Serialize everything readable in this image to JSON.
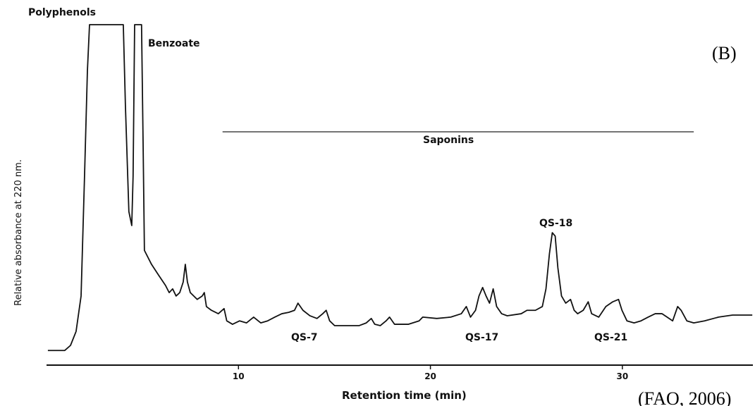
{
  "chart_data": {
    "type": "line",
    "color": "#111111",
    "x_label": "Retention time (min)",
    "y_label": "Relative absorbance at 220 nm.",
    "panel_label": "(B)",
    "source": "(FAO, 2006)",
    "xlim": [
      0,
      36.8
    ],
    "ylim": [
      0,
      100
    ],
    "xticks": [
      10,
      20,
      30
    ],
    "grid": false,
    "annotations": [
      {
        "text": "Polyphenols"
      },
      {
        "text": "Benzoate"
      },
      {
        "text": "Saponins",
        "range": [
          9.17,
          33.72
        ]
      },
      {
        "text": "QS-18"
      },
      {
        "text": "QS-7"
      },
      {
        "text": "QS-17"
      },
      {
        "text": "QS-21"
      }
    ],
    "x": [
      0.07,
      0.95,
      1.25,
      1.54,
      1.8,
      1.98,
      2.13,
      2.24,
      4.0,
      4.11,
      4.29,
      4.44,
      4.51,
      4.59,
      4.95,
      5.03,
      5.1,
      5.47,
      5.83,
      6.2,
      6.39,
      6.57,
      6.75,
      6.94,
      7.12,
      7.23,
      7.34,
      7.49,
      7.85,
      8.11,
      8.22,
      8.33,
      8.59,
      8.95,
      9.25,
      9.39,
      9.69,
      10.06,
      10.42,
      10.79,
      11.16,
      11.52,
      11.89,
      12.26,
      12.62,
      12.92,
      13.1,
      13.36,
      13.72,
      14.09,
      14.39,
      14.57,
      14.75,
      15.01,
      15.56,
      16.29,
      16.66,
      16.92,
      17.1,
      17.39,
      17.69,
      17.87,
      18.13,
      18.86,
      19.41,
      19.6,
      20.33,
      21.06,
      21.61,
      21.87,
      22.09,
      22.35,
      22.53,
      22.72,
      22.9,
      23.08,
      23.27,
      23.45,
      23.71,
      24.0,
      24.73,
      25.03,
      25.47,
      25.83,
      26.02,
      26.2,
      26.35,
      26.5,
      26.64,
      26.83,
      27.05,
      27.3,
      27.49,
      27.67,
      27.96,
      28.22,
      28.4,
      28.77,
      29.14,
      29.5,
      29.8,
      29.98,
      30.24,
      30.61,
      30.97,
      31.34,
      31.71,
      32.07,
      32.33,
      32.62,
      32.88,
      33.06,
      33.36,
      33.72,
      34.28,
      35.01,
      35.74,
      36.77
    ],
    "values": [
      4.3,
      4.3,
      5.8,
      9.9,
      20.3,
      55.5,
      86.5,
      100,
      100,
      76.2,
      45.1,
      41.0,
      55.5,
      100,
      100,
      65.8,
      33.7,
      29.6,
      26.5,
      23.4,
      21.3,
      22.4,
      20.3,
      21.3,
      24.4,
      29.6,
      24.4,
      21.3,
      19.3,
      20.3,
      21.3,
      17.2,
      16.1,
      15.1,
      16.6,
      13.0,
      12.0,
      13.0,
      12.4,
      14.1,
      12.4,
      13.0,
      14.1,
      15.1,
      15.5,
      16.1,
      18.2,
      16.1,
      14.5,
      13.7,
      15.1,
      16.1,
      13.0,
      11.6,
      11.6,
      11.6,
      12.4,
      13.7,
      12.0,
      11.6,
      13.0,
      14.1,
      12.0,
      12.0,
      13.0,
      14.1,
      13.7,
      14.1,
      15.1,
      17.2,
      14.1,
      16.1,
      20.3,
      22.8,
      20.3,
      18.2,
      22.4,
      17.2,
      15.1,
      14.5,
      15.1,
      16.1,
      16.1,
      17.2,
      22.4,
      32.7,
      38.9,
      37.9,
      28.6,
      20.3,
      18.2,
      19.3,
      16.1,
      15.1,
      16.1,
      18.6,
      15.1,
      14.1,
      17.2,
      18.6,
      19.3,
      16.1,
      13.0,
      12.4,
      13.0,
      14.1,
      15.1,
      15.1,
      14.1,
      13.0,
      17.2,
      16.1,
      13.0,
      12.4,
      13.0,
      14.1,
      14.7,
      14.7
    ]
  }
}
